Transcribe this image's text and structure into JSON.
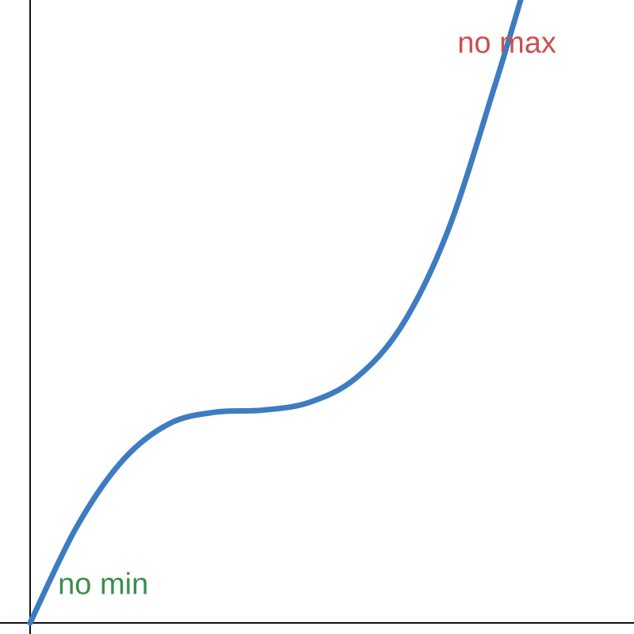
{
  "chart_data": {
    "type": "line",
    "title": "",
    "xlabel": "",
    "ylabel": "",
    "xlim": [
      0,
      6.5
    ],
    "ylim": [
      0,
      6.5
    ],
    "grid": false,
    "series": [
      {
        "color": "#3d7cc0",
        "points": [
          [
            0.0,
            0.0
          ],
          [
            0.5,
            1.0
          ],
          [
            1.0,
            1.7
          ],
          [
            1.5,
            2.08
          ],
          [
            2.0,
            2.2
          ],
          [
            2.5,
            2.22
          ],
          [
            3.0,
            2.3
          ],
          [
            3.5,
            2.55
          ],
          [
            4.0,
            3.1
          ],
          [
            4.5,
            4.1
          ],
          [
            5.0,
            5.6
          ],
          [
            5.28,
            6.5
          ]
        ]
      }
    ],
    "annotations": [
      {
        "id": "no-min",
        "text": "no min",
        "color": "#3a8f4a",
        "x": 0.3,
        "y": 0.3
      },
      {
        "id": "no-max",
        "text": "no max",
        "color": "#cc4f4f",
        "x": 4.6,
        "y": 5.95
      }
    ]
  }
}
